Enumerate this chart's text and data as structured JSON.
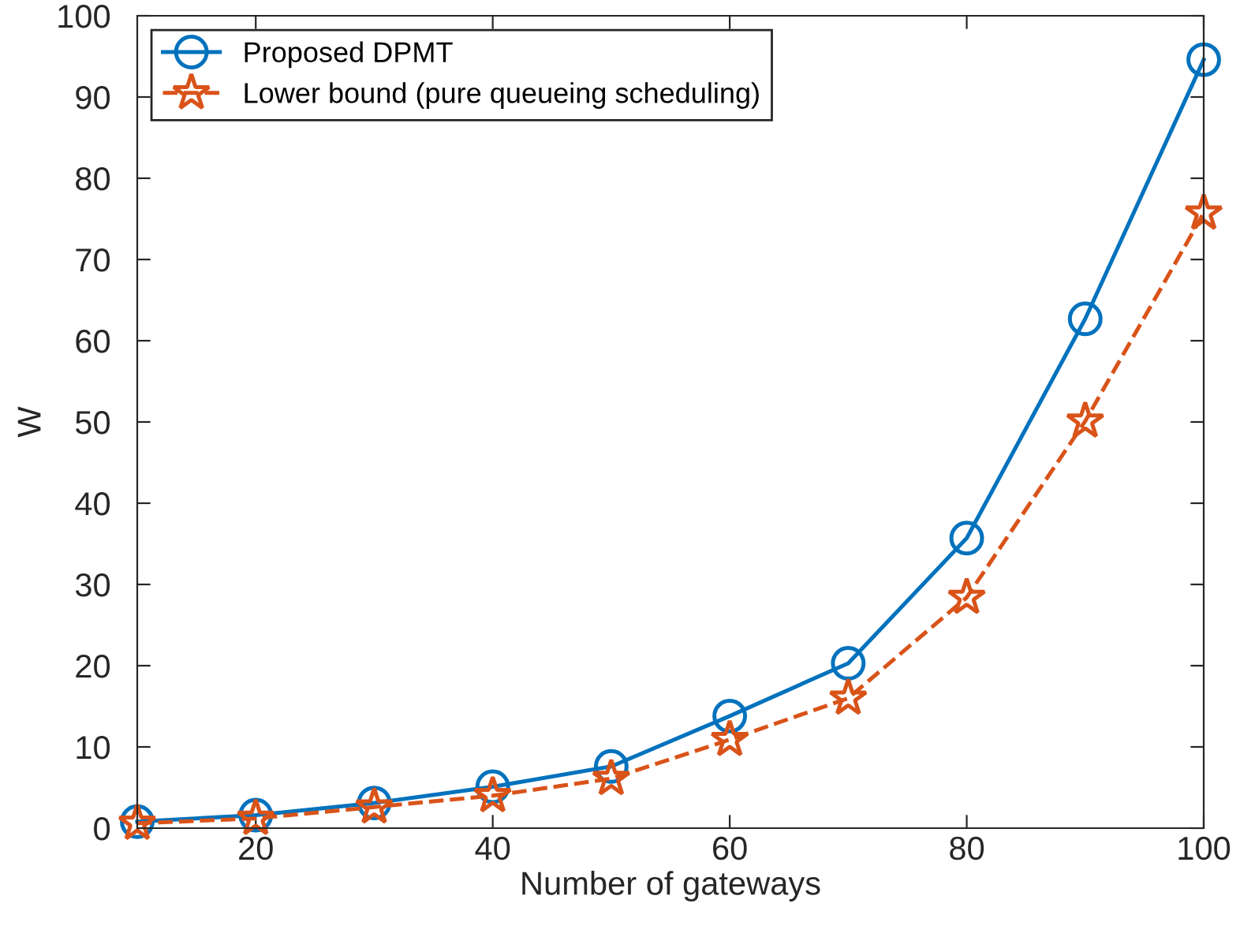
{
  "chart_data": {
    "type": "line",
    "xlabel": "Number of gateways",
    "ylabel": "W",
    "x": [
      10,
      20,
      30,
      40,
      50,
      60,
      70,
      80,
      90,
      100
    ],
    "series": [
      {
        "name": "Proposed DPMT",
        "color": "#0072bd",
        "marker": "circle",
        "line_style": "solid",
        "values": [
          0.8,
          1.6,
          3.1,
          5.1,
          7.6,
          13.8,
          20.3,
          35.7,
          62.7,
          94.6
        ]
      },
      {
        "name": "Lower bound (pure queueing scheduling)",
        "color": "#d95319",
        "marker": "star",
        "line_style": "dashed",
        "values": [
          0.6,
          1.2,
          2.6,
          4.0,
          6.1,
          10.9,
          16.0,
          28.4,
          50.1,
          75.7
        ]
      }
    ],
    "xlim": [
      10,
      100
    ],
    "ylim": [
      0,
      100
    ],
    "xticks": [
      20,
      40,
      60,
      80,
      100
    ],
    "yticks": [
      0,
      10,
      20,
      30,
      40,
      50,
      60,
      70,
      80,
      90,
      100
    ],
    "grid": false,
    "legend": "top left"
  }
}
